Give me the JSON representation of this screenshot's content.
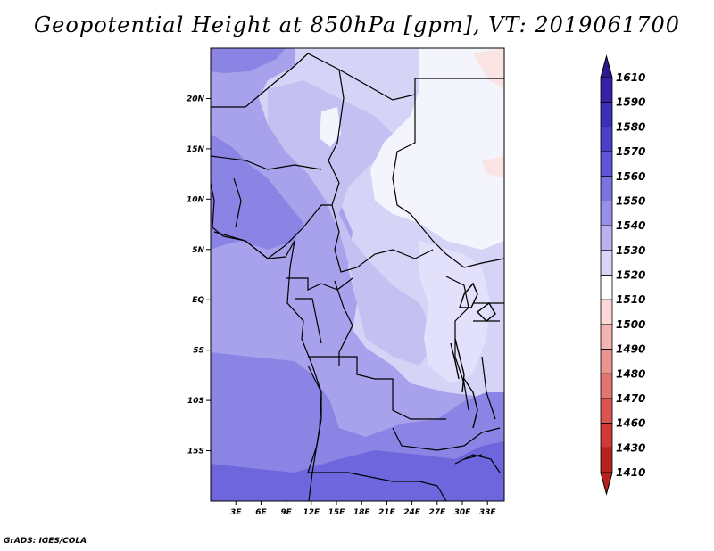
{
  "title": "Geopotential Height at 850hPa [gpm], VT: 2019061700",
  "footer": "GrADS: IGES/COLA",
  "map": {
    "lon_range": [
      0,
      35
    ],
    "lat_range": [
      -20,
      25
    ],
    "lat_ticks": [
      {
        "lat": 20,
        "label": "20N"
      },
      {
        "lat": 15,
        "label": "15N"
      },
      {
        "lat": 10,
        "label": "10N"
      },
      {
        "lat": 5,
        "label": "5N"
      },
      {
        "lat": 0,
        "label": "EQ"
      },
      {
        "lat": -5,
        "label": "5S"
      },
      {
        "lat": -10,
        "label": "10S"
      },
      {
        "lat": -15,
        "label": "15S"
      }
    ],
    "lon_ticks": [
      {
        "lon": 3,
        "label": "3E"
      },
      {
        "lon": 6,
        "label": "6E"
      },
      {
        "lon": 9,
        "label": "9E"
      },
      {
        "lon": 12,
        "label": "12E"
      },
      {
        "lon": 15,
        "label": "15E"
      },
      {
        "lon": 18,
        "label": "18E"
      },
      {
        "lon": 21,
        "label": "21E"
      },
      {
        "lon": 24,
        "label": "24E"
      },
      {
        "lon": 27,
        "label": "27E"
      },
      {
        "lon": 30,
        "label": "30E"
      },
      {
        "lon": 33,
        "label": "33E"
      }
    ]
  },
  "colorbar": {
    "levels": [
      {
        "value": "1610",
        "color": "#2a1a8c"
      },
      {
        "value": "1590",
        "color": "#3322a4"
      },
      {
        "value": "1580",
        "color": "#3d30b8"
      },
      {
        "value": "1570",
        "color": "#4a40c8"
      },
      {
        "value": "1560",
        "color": "#5e56d4"
      },
      {
        "value": "1550",
        "color": "#7a72de"
      },
      {
        "value": "1540",
        "color": "#9890e8"
      },
      {
        "value": "1530",
        "color": "#b8b2f0"
      },
      {
        "value": "1520",
        "color": "#d8d6f8"
      },
      {
        "value": "1510",
        "color": "#ffffff"
      },
      {
        "value": "1500",
        "color": "#fcd8d8"
      },
      {
        "value": "1490",
        "color": "#f4b4b2"
      },
      {
        "value": "1480",
        "color": "#ec9490"
      },
      {
        "value": "1470",
        "color": "#e47470"
      },
      {
        "value": "1460",
        "color": "#dc5450"
      },
      {
        "value": "1430",
        "color": "#d03a36"
      },
      {
        "value": "1410",
        "color": "#b8221e"
      }
    ]
  }
}
